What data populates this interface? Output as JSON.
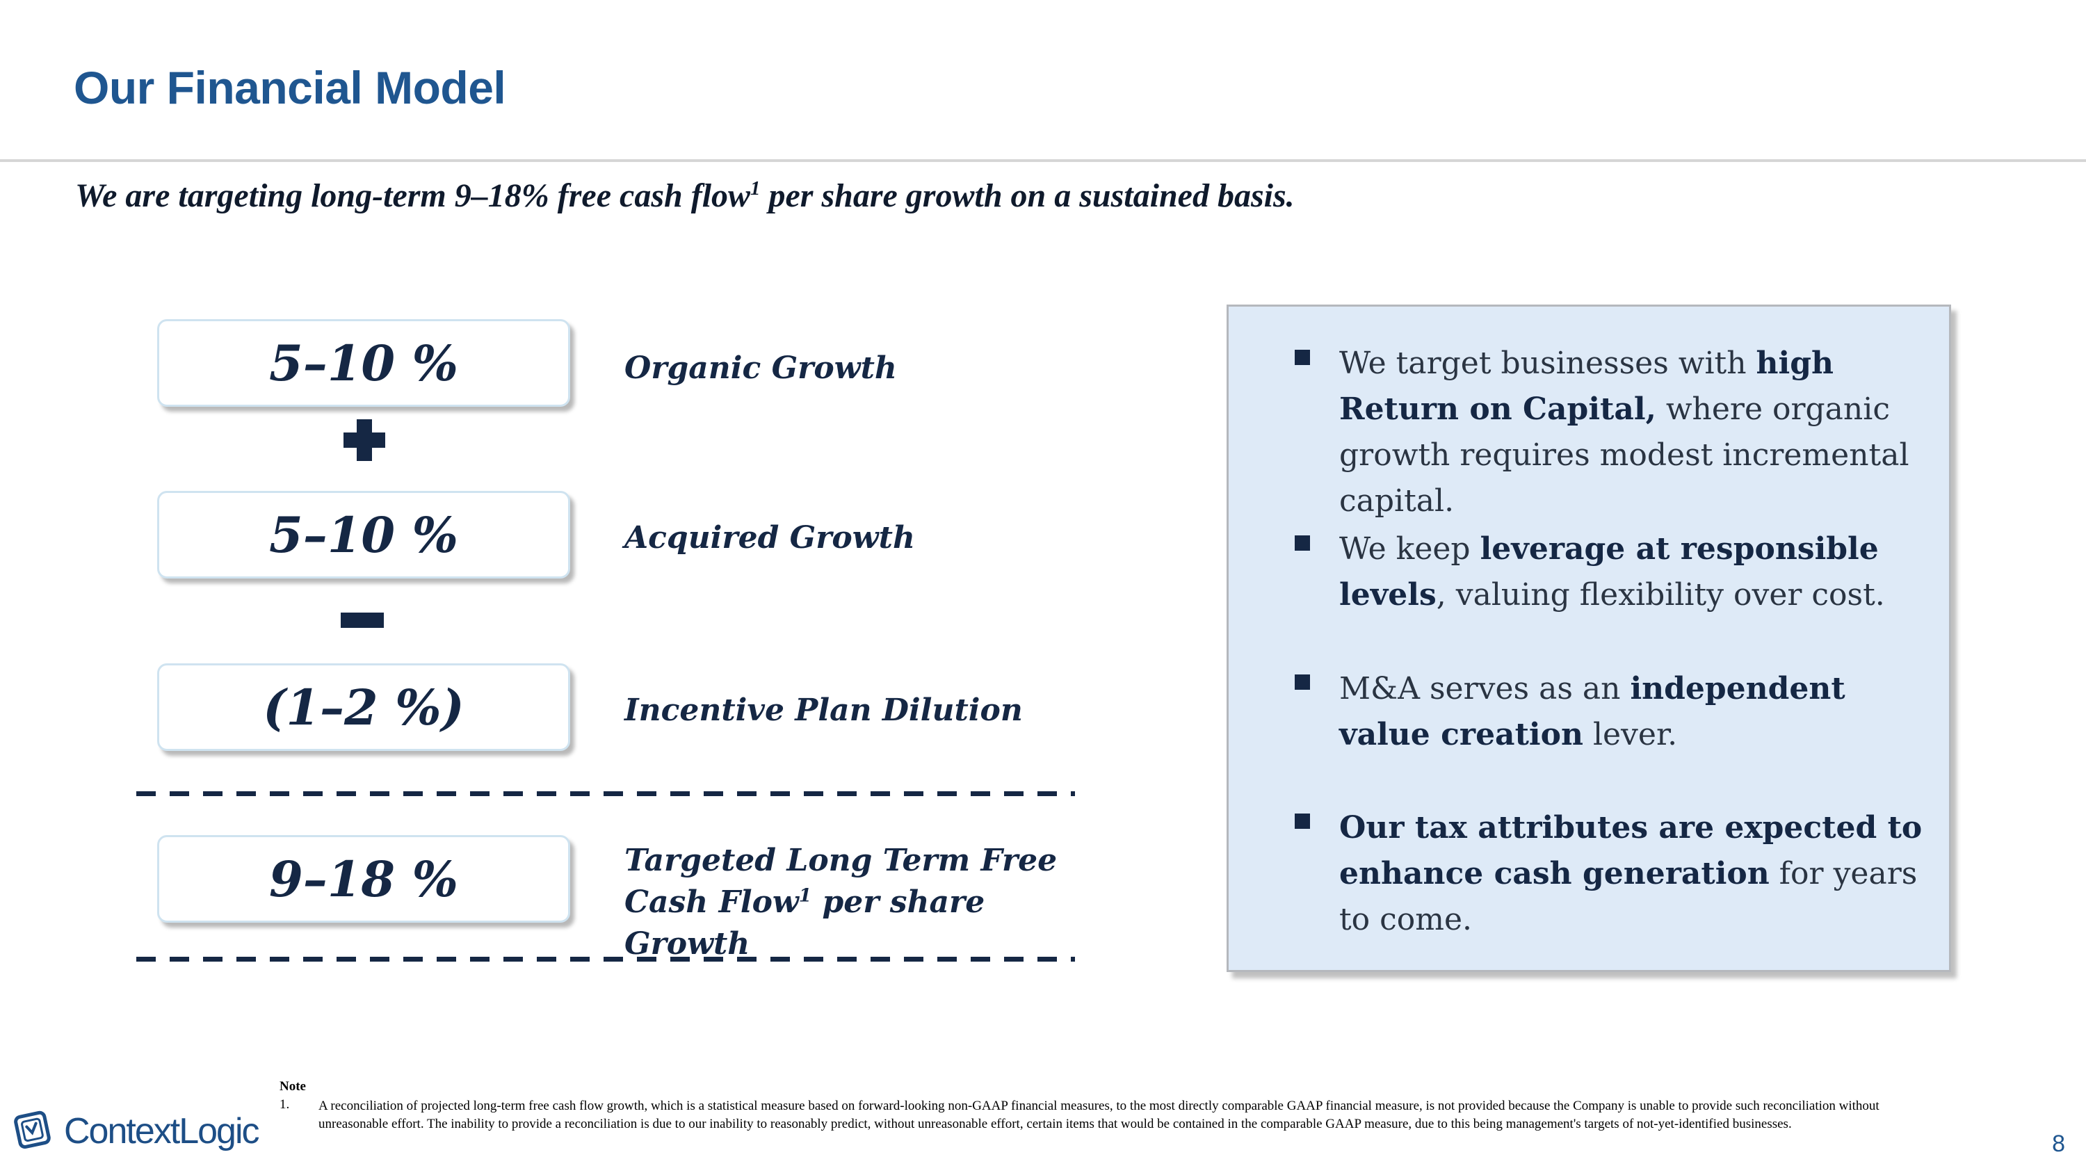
{
  "header": {
    "title": "Our Financial Model"
  },
  "subtitle": {
    "before": "We are targeting long-term 9–18% free cash flow",
    "sup": "1",
    "after": " per share growth on a sustained basis."
  },
  "model": {
    "organic": {
      "value": "5–10 %",
      "label": "Organic Growth"
    },
    "acquired": {
      "value": "5–10 %",
      "label": "Acquired Growth"
    },
    "dilution": {
      "value": "(1–2 %)",
      "label": "Incentive Plan Dilution"
    },
    "target": {
      "value": "9–18 %",
      "label_line1": "Targeted Long Term Free",
      "label_line2a": "Cash Flow",
      "label_sup": "1",
      "label_line2b": " per share",
      "label_line3": "Growth"
    }
  },
  "panel": {
    "b1": {
      "pre": "We target businesses with ",
      "bold": "high Return on Capital,",
      "post": " where organic growth requires modest incremental capital."
    },
    "b2": {
      "pre": "We keep ",
      "bold": "leverage at responsible levels",
      "post": ", valuing flexibility over cost."
    },
    "b3": {
      "pre": "M&A serves as an ",
      "bold": "independent value creation",
      "post": " lever."
    },
    "b4": {
      "bold": "Our tax attributes are expected to enhance cash generation",
      "post": " for years to come."
    }
  },
  "footnote": {
    "heading": "Note",
    "number": "1.",
    "text": "A reconciliation of projected long-term free cash flow growth, which is a statistical measure based on forward-looking non-GAAP financial measures, to the most directly comparable GAAP financial measure, is not provided because the Company is unable to provide such reconciliation without unreasonable effort. The inability to provide a reconciliation is due to our inability to reasonably predict, without unreasonable effort, certain items that would be contained in the comparable GAAP measure, due to this being management's targets of not-yet-identified businesses."
  },
  "brand": {
    "logo_text": "ContextLogic",
    "color": "#1f5690"
  },
  "page_number": "8"
}
